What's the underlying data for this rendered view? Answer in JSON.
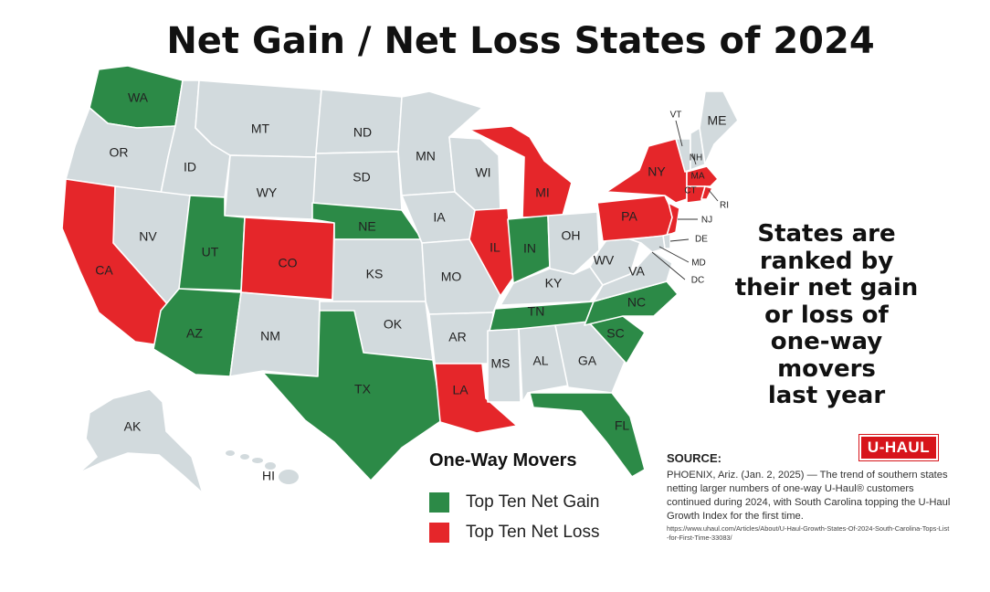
{
  "title": "Net Gain / Net Loss States of 2024",
  "side_note": [
    "States are",
    "ranked by",
    "their net gain",
    "or loss of",
    "one-way",
    "movers",
    "last year"
  ],
  "legend": {
    "title": "One-Way Movers",
    "items": [
      {
        "label": "Top Ten Net Gain",
        "color": "#2c8a47"
      },
      {
        "label": "Top Ten Net Loss",
        "color": "#e5262a"
      }
    ]
  },
  "logo_text": "U-HAUL",
  "source": {
    "heading": "SOURCE:",
    "body": "PHOENIX, Ariz. (Jan. 2, 2025) — The trend of southern states netting larger numbers of one-way U-Haul® customers continued during 2024, with South Carolina topping the U-Haul Growth Index for the first time.",
    "url": "https://www.uhaul.com/Articles/About/U-Haul-Growth-States-Of-2024-South-Carolina-Tops-List-for-First-Time-33083/"
  },
  "colors": {
    "gain": "#2c8a47",
    "loss": "#e5262a",
    "neutral": "#d2dadd"
  },
  "top_ten_gain": [
    "SC",
    "TX",
    "NC",
    "FL",
    "TN",
    "AZ",
    "WA",
    "IN",
    "UT",
    "NE"
  ],
  "top_ten_loss": [
    "CA",
    "IL",
    "NY",
    "MA",
    "CO",
    "PA",
    "MI",
    "NJ",
    "LA",
    "CT"
  ],
  "state_labels": [
    "WA",
    "OR",
    "ID",
    "MT",
    "ND",
    "SD",
    "WY",
    "NV",
    "CA",
    "UT",
    "CO",
    "NE",
    "KS",
    "AZ",
    "NM",
    "OK",
    "TX",
    "MN",
    "IA",
    "MO",
    "AR",
    "LA",
    "WI",
    "IL",
    "MI",
    "IN",
    "KY",
    "TN",
    "MS",
    "AL",
    "GA",
    "FL",
    "SC",
    "NC",
    "VA",
    "WV",
    "OH",
    "PA",
    "NY",
    "VT",
    "NH",
    "ME",
    "MA",
    "CT",
    "RI",
    "NJ",
    "DE",
    "MD",
    "DC",
    "AK",
    "HI"
  ]
}
